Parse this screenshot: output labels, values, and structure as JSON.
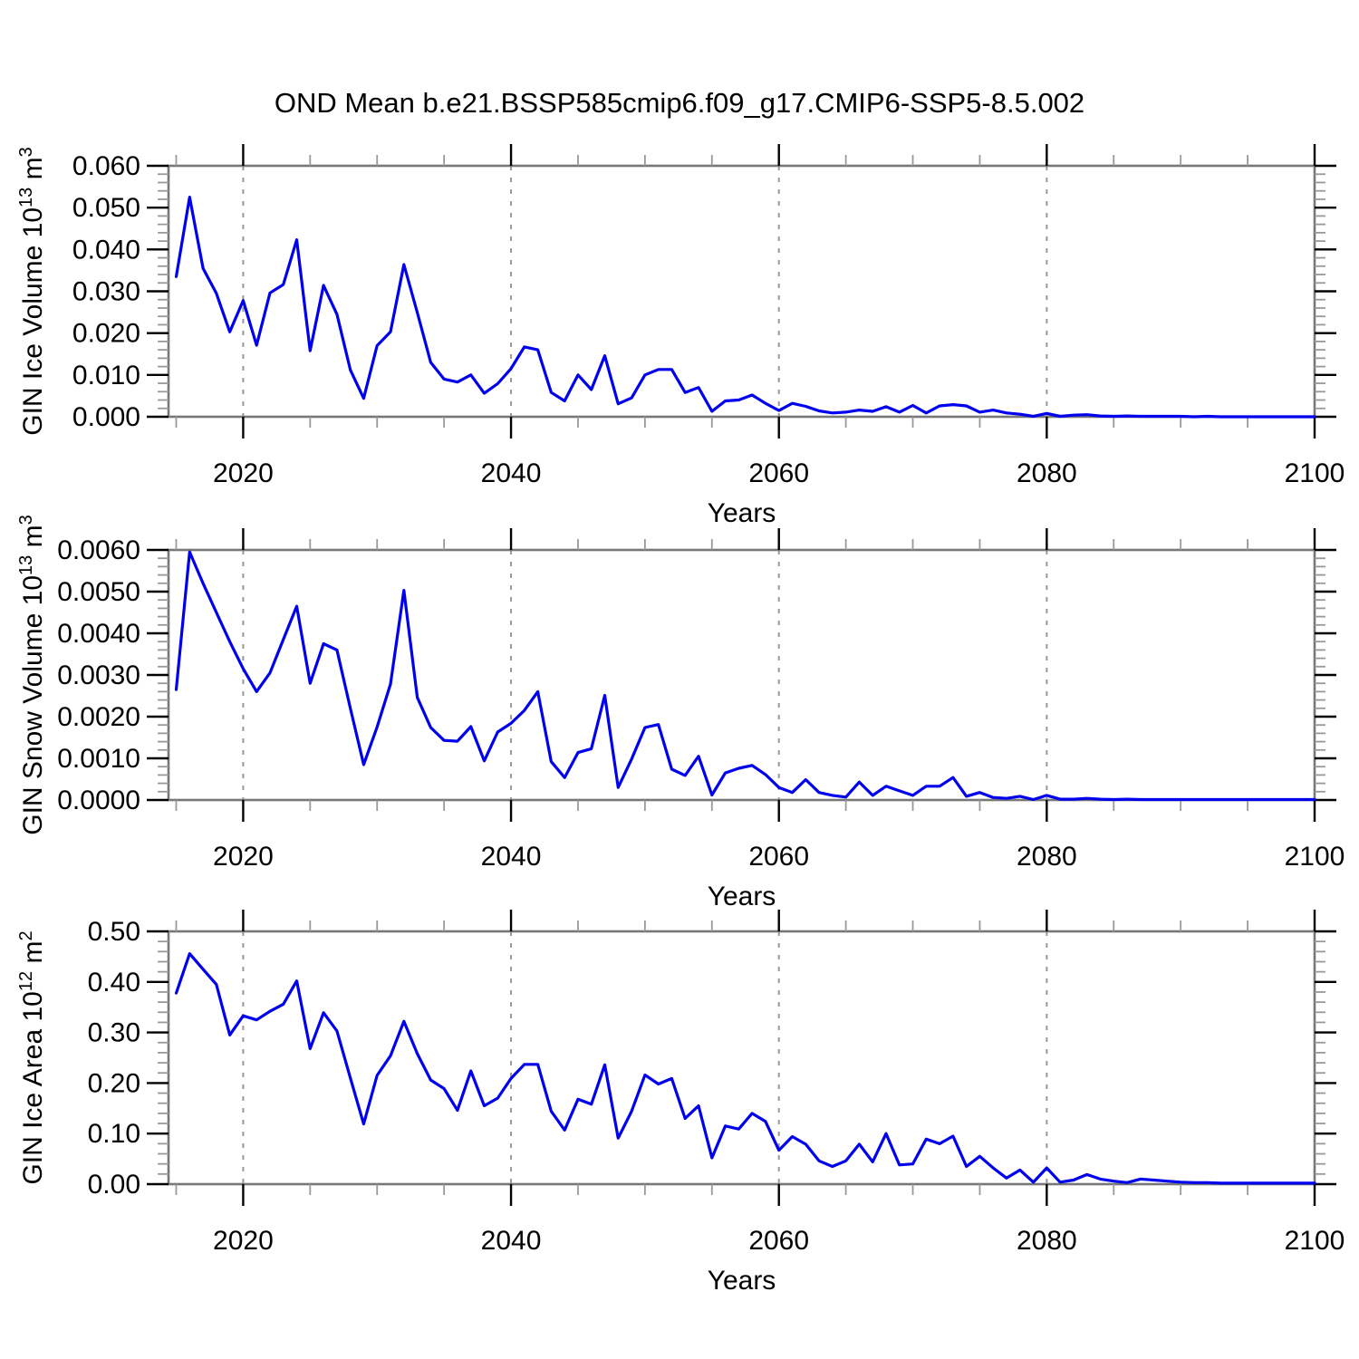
{
  "title": "OND Mean b.e21.BSSP585cmip6.f09_g17.CMIP6-SSP5-8.5.002",
  "colors": {
    "line": "#0000EE",
    "axis_box": "#777777",
    "major_tick": "#000000",
    "minor_tick": "#999999",
    "gridline": "#999999",
    "text": "#000000",
    "background": "#FFFFFF"
  },
  "x_axis": {
    "label": "Years",
    "min": 2014.4,
    "max": 2100,
    "major_ticks": [
      2020,
      2040,
      2060,
      2080,
      2100
    ],
    "minor_step": 5,
    "gridlines": [
      2020,
      2040,
      2060,
      2080
    ]
  },
  "chart_data": [
    {
      "type": "line",
      "name": "gin-ice-volume",
      "ylabel_parts": [
        {
          "t": "GIN Ice Volume 10"
        },
        {
          "t": "13",
          "sup": true
        },
        {
          "t": " m"
        },
        {
          "t": "3",
          "sup": true
        }
      ],
      "ylabel_plain": "GIN Ice Volume 10^13 m^3",
      "ylim": [
        0,
        0.06
      ],
      "ytick_major_step": 0.01,
      "ytick_minor_step": 0.002,
      "ytick_decimals": 3,
      "x_start": 2015,
      "x_step": 1,
      "values": [
        0.0335,
        0.0525,
        0.0355,
        0.0295,
        0.0203,
        0.0278,
        0.0171,
        0.0296,
        0.0316,
        0.0423,
        0.0158,
        0.0314,
        0.0245,
        0.0112,
        0.0044,
        0.017,
        0.0203,
        0.0364,
        0.0249,
        0.013,
        0.009,
        0.0083,
        0.01,
        0.0056,
        0.0079,
        0.0115,
        0.0167,
        0.016,
        0.0058,
        0.0038,
        0.01,
        0.0065,
        0.0146,
        0.0031,
        0.0045,
        0.01,
        0.0113,
        0.0113,
        0.0058,
        0.007,
        0.0013,
        0.0038,
        0.004,
        0.0052,
        0.0032,
        0.0015,
        0.0032,
        0.0025,
        0.0014,
        0.0009,
        0.0011,
        0.0016,
        0.0013,
        0.0024,
        0.0011,
        0.0027,
        0.0009,
        0.0026,
        0.0029,
        0.0026,
        0.0011,
        0.0016,
        0.0009,
        0.0006,
        0.0001,
        0.0008,
        0.0001,
        0.0004,
        0.0005,
        0.0002,
        0.0001,
        0.0002,
        0.0001,
        0.0001,
        0.0001,
        0.0001,
        0.0,
        0.0001,
        0.0,
        0.0,
        0.0,
        0.0,
        0.0,
        0.0,
        0.0,
        0.0
      ]
    },
    {
      "type": "line",
      "name": "gin-snow-volume",
      "ylabel_parts": [
        {
          "t": "GIN Snow Volume 10"
        },
        {
          "t": "13",
          "sup": true
        },
        {
          "t": " m"
        },
        {
          "t": "3",
          "sup": true
        }
      ],
      "ylabel_plain": "GIN Snow Volume 10^13 m^3",
      "ylim": [
        0,
        0.006
      ],
      "ytick_major_step": 0.001,
      "ytick_minor_step": 0.0002,
      "ytick_decimals": 4,
      "x_start": 2015,
      "x_step": 1,
      "values": [
        0.00265,
        0.00595,
        0.0052,
        0.0045,
        0.0038,
        0.00315,
        0.0026,
        0.00305,
        0.00385,
        0.00465,
        0.0028,
        0.00375,
        0.0036,
        0.0022,
        0.00085,
        0.00175,
        0.00278,
        0.00503,
        0.00246,
        0.00174,
        0.00143,
        0.00141,
        0.00176,
        0.00094,
        0.00163,
        0.00184,
        0.00215,
        0.0026,
        0.00092,
        0.00054,
        0.00114,
        0.00123,
        0.00251,
        0.0003,
        0.00098,
        0.00174,
        0.00181,
        0.00074,
        0.00059,
        0.00105,
        0.00012,
        0.00065,
        0.00076,
        0.00083,
        0.00061,
        0.0003,
        0.00018,
        0.00049,
        0.00018,
        0.00011,
        7e-05,
        0.00043,
        0.00011,
        0.00033,
        0.00022,
        0.00011,
        0.00033,
        0.00033,
        0.00054,
        9e-05,
        0.00018,
        6e-05,
        4e-05,
        9e-05,
        1e-05,
        0.00011,
        2e-05,
        2e-05,
        4e-05,
        2e-05,
        1e-05,
        2e-05,
        1e-05,
        1e-05,
        1e-05,
        1e-05,
        1e-05,
        1e-05,
        1e-05,
        1e-05,
        1e-05,
        1e-05,
        1e-05,
        1e-05,
        1e-05,
        1e-05
      ]
    },
    {
      "type": "line",
      "name": "gin-ice-area",
      "ylabel_parts": [
        {
          "t": "GIN Ice Area 10"
        },
        {
          "t": "12",
          "sup": true
        },
        {
          "t": " m"
        },
        {
          "t": "2",
          "sup": true
        }
      ],
      "ylabel_plain": "GIN Ice Area 10^12 m^2",
      "ylim": [
        0,
        0.5
      ],
      "ytick_major_step": 0.1,
      "ytick_minor_step": 0.02,
      "ytick_decimals": 2,
      "x_start": 2015,
      "x_step": 1,
      "values": [
        0.378,
        0.456,
        0.425,
        0.395,
        0.295,
        0.333,
        0.325,
        0.342,
        0.356,
        0.402,
        0.268,
        0.339,
        0.303,
        0.21,
        0.119,
        0.215,
        0.254,
        0.322,
        0.258,
        0.206,
        0.189,
        0.146,
        0.224,
        0.155,
        0.17,
        0.209,
        0.237,
        0.237,
        0.144,
        0.107,
        0.168,
        0.158,
        0.236,
        0.091,
        0.144,
        0.216,
        0.198,
        0.209,
        0.13,
        0.155,
        0.052,
        0.115,
        0.109,
        0.14,
        0.124,
        0.067,
        0.094,
        0.079,
        0.046,
        0.035,
        0.046,
        0.079,
        0.044,
        0.1,
        0.038,
        0.04,
        0.089,
        0.08,
        0.095,
        0.035,
        0.055,
        0.032,
        0.012,
        0.028,
        0.004,
        0.032,
        0.004,
        0.008,
        0.019,
        0.01,
        0.006,
        0.003,
        0.01,
        0.008,
        0.006,
        0.004,
        0.003,
        0.003,
        0.002,
        0.002,
        0.002,
        0.002,
        0.002,
        0.002,
        0.002,
        0.002
      ]
    }
  ]
}
